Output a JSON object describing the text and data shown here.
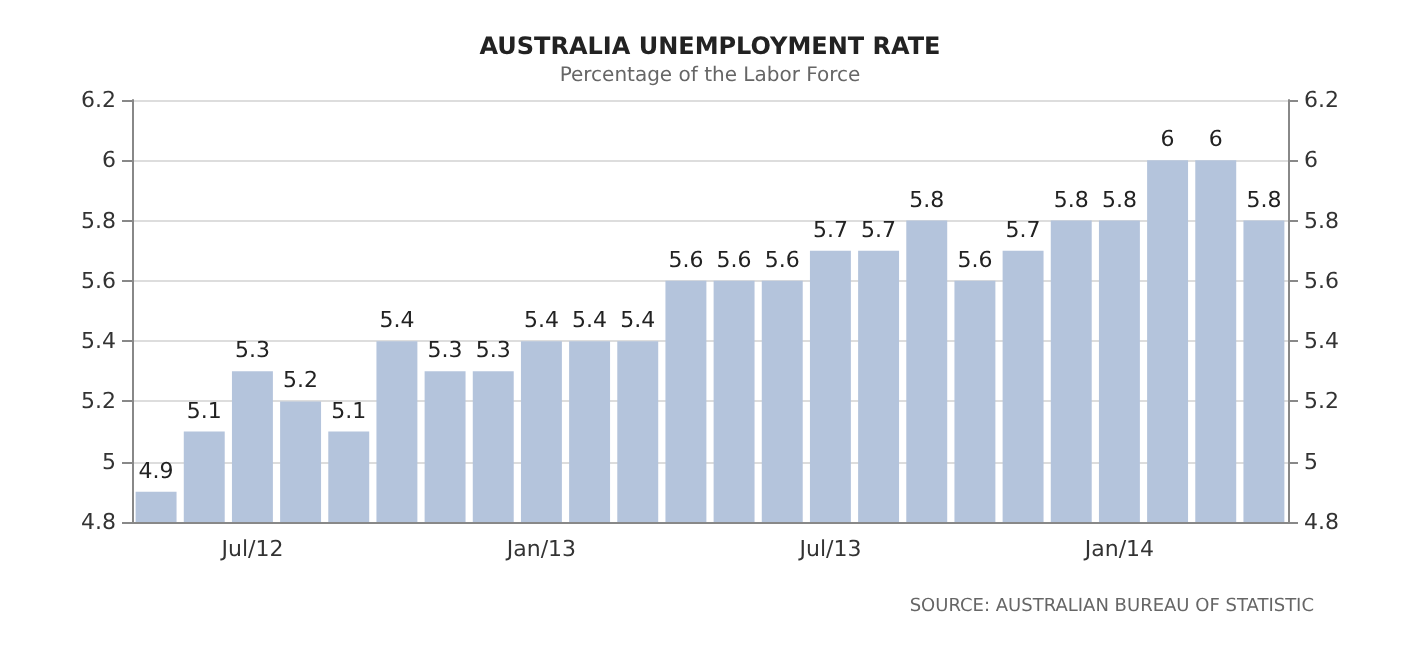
{
  "chart_data": {
    "type": "bar",
    "title": "AUSTRALIA UNEMPLOYMENT RATE",
    "subtitle": "Percentage of the Labor Force",
    "categories": [
      null,
      null,
      "Jul/12",
      null,
      null,
      null,
      null,
      null,
      "Jan/13",
      null,
      null,
      null,
      null,
      null,
      "Jul/13",
      null,
      null,
      null,
      null,
      null,
      "Jan/14",
      null,
      null,
      null
    ],
    "values": [
      4.9,
      5.1,
      5.3,
      5.2,
      5.1,
      5.4,
      5.3,
      5.3,
      5.4,
      5.4,
      5.4,
      5.6,
      5.6,
      5.6,
      5.7,
      5.7,
      5.8,
      5.6,
      5.7,
      5.8,
      5.8,
      6,
      6,
      5.8
    ],
    "color": "#b4c4dc",
    "data_labels": true,
    "grid": "y",
    "ylim": [
      4.8,
      6.2
    ],
    "yticks": [
      4.8,
      5,
      5.2,
      5.4,
      5.6,
      5.8,
      6,
      6.2
    ],
    "y2lim": [
      4.8,
      6.2
    ],
    "y2ticks": [
      4.8,
      5,
      5.2,
      5.4,
      5.6,
      5.8,
      6,
      6.2
    ],
    "annotations": [
      "SOURCE: AUSTRALIAN BUREAU OF STATISTIC"
    ]
  }
}
